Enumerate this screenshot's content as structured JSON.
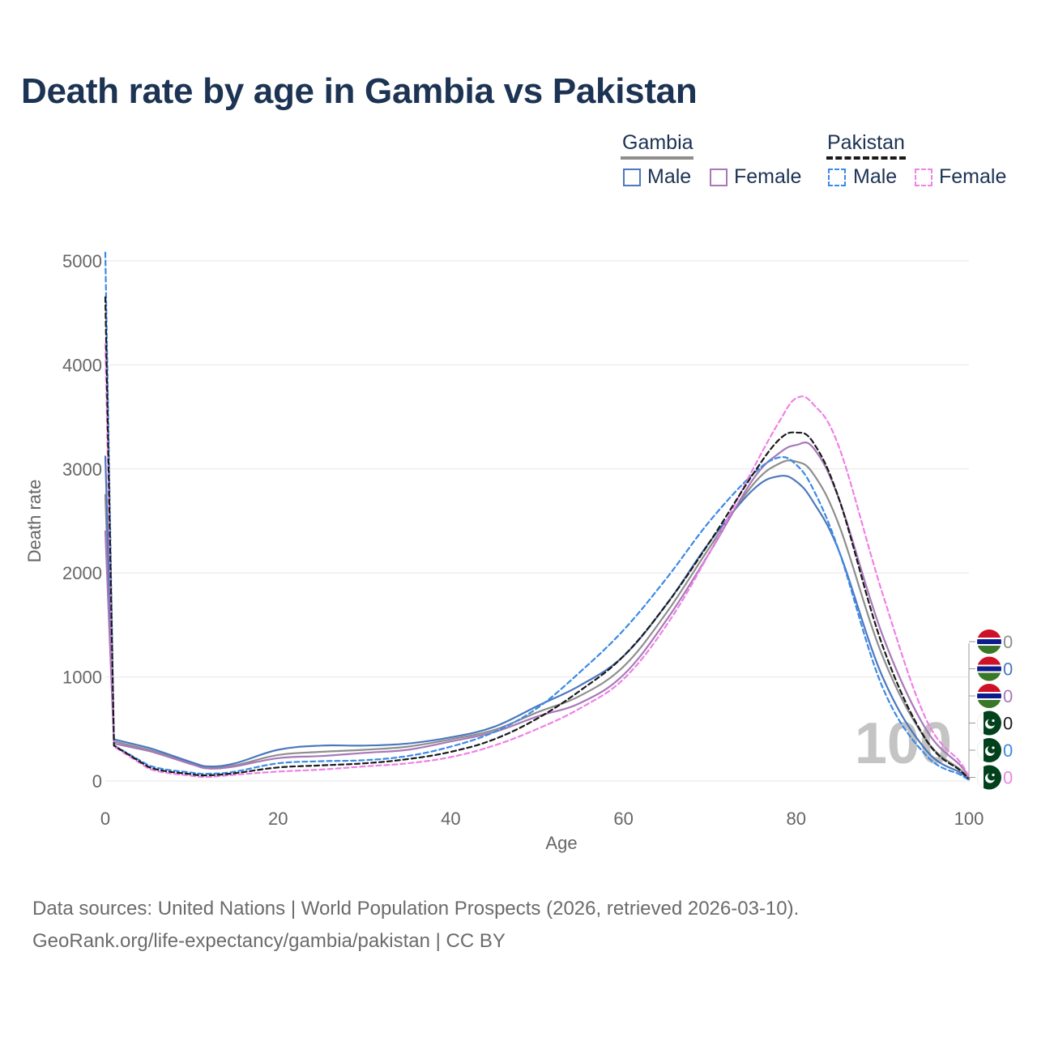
{
  "chart_data": {
    "type": "line",
    "title": "Death rate by age in Gambia vs Pakistan",
    "xlabel": "Age",
    "ylabel": "Death rate",
    "xlim": [
      0,
      100
    ],
    "ylim": [
      0,
      5000
    ],
    "xticks": [
      "0",
      "20",
      "40",
      "60",
      "80",
      "100"
    ],
    "yticks": [
      "0",
      "1000",
      "2000",
      "3000",
      "4000",
      "5000"
    ],
    "x": [
      0,
      1,
      5,
      10,
      12,
      15,
      20,
      25,
      30,
      35,
      40,
      45,
      50,
      55,
      60,
      65,
      70,
      75,
      78,
      80,
      82,
      85,
      90,
      95,
      99,
      100
    ],
    "series": [
      {
        "name": "Gambia Male",
        "country": "Gambia",
        "sex": "Male",
        "color": "#4c78be",
        "dash": false,
        "values": [
          3120,
          400,
          320,
          180,
          140,
          170,
          300,
          340,
          340,
          360,
          420,
          520,
          720,
          920,
          1200,
          1700,
          2300,
          2800,
          2930,
          2880,
          2680,
          2200,
          1000,
          300,
          80,
          20
        ]
      },
      {
        "name": "Gambia Female",
        "country": "Gambia",
        "sex": "Female",
        "color": "#a878b8",
        "dash": false,
        "values": [
          2400,
          360,
          290,
          160,
          120,
          140,
          220,
          240,
          270,
          300,
          380,
          470,
          620,
          750,
          1020,
          1550,
          2200,
          2900,
          3150,
          3230,
          3200,
          2700,
          1400,
          500,
          150,
          30
        ]
      },
      {
        "name": "Gambia (both)",
        "country": "Gambia",
        "sex": "Both",
        "color": "#8e8e8e",
        "dash": false,
        "values": [
          2750,
          380,
          300,
          170,
          130,
          150,
          250,
          280,
          300,
          330,
          400,
          490,
          660,
          820,
          1100,
          1620,
          2250,
          2850,
          3050,
          3070,
          2950,
          2450,
          1200,
          400,
          110,
          25
        ]
      },
      {
        "name": "Pakistan Male",
        "country": "Pakistan",
        "sex": "Male",
        "color": "#3b8ae6",
        "dash": true,
        "values": [
          5080,
          340,
          150,
          80,
          70,
          90,
          170,
          190,
          200,
          240,
          330,
          470,
          700,
          1050,
          1450,
          1950,
          2500,
          2950,
          3110,
          3040,
          2800,
          2200,
          900,
          250,
          60,
          10
        ]
      },
      {
        "name": "Pakistan Female",
        "country": "Pakistan",
        "sex": "Female",
        "color": "#ee82e6",
        "dash": true,
        "values": [
          4200,
          330,
          120,
          50,
          40,
          60,
          90,
          110,
          140,
          170,
          230,
          340,
          500,
          700,
          980,
          1500,
          2200,
          3000,
          3450,
          3680,
          3620,
          3200,
          1800,
          600,
          180,
          30
        ]
      },
      {
        "name": "Pakistan (both)",
        "country": "Pakistan",
        "sex": "Both",
        "color": "#1a1a1a",
        "dash": true,
        "values": [
          4650,
          340,
          135,
          65,
          55,
          75,
          130,
          150,
          170,
          210,
          280,
          400,
          600,
          870,
          1200,
          1700,
          2300,
          2950,
          3280,
          3350,
          3250,
          2700,
          1300,
          400,
          100,
          20
        ]
      }
    ],
    "end_labels": [
      {
        "flag": "Gambia",
        "value": "0",
        "color": "#8e8e8e"
      },
      {
        "flag": "Gambia",
        "value": "0",
        "color": "#4c78be"
      },
      {
        "flag": "Gambia",
        "value": "0",
        "color": "#a878b8"
      },
      {
        "flag": "Pakistan",
        "value": "0",
        "color": "#1a1a1a"
      },
      {
        "flag": "Pakistan",
        "value": "0",
        "color": "#3b8ae6"
      },
      {
        "flag": "Pakistan",
        "value": "0",
        "color": "#ee82e6"
      }
    ],
    "watermark": "100"
  },
  "legend": {
    "gambia": {
      "label": "Gambia",
      "male": "Male",
      "female": "Female"
    },
    "pakistan": {
      "label": "Pakistan",
      "male": "Male",
      "female": "Female"
    }
  },
  "colors": {
    "title": "#1c3353",
    "axis_text": "#666666",
    "grid": "#e6e6e6"
  },
  "footer": {
    "source": "Data sources: United Nations | World Population Prospects (2026, retrieved 2026-03-10).",
    "link": "GeoRank.org/life-expectancy/gambia/pakistan | CC BY"
  }
}
